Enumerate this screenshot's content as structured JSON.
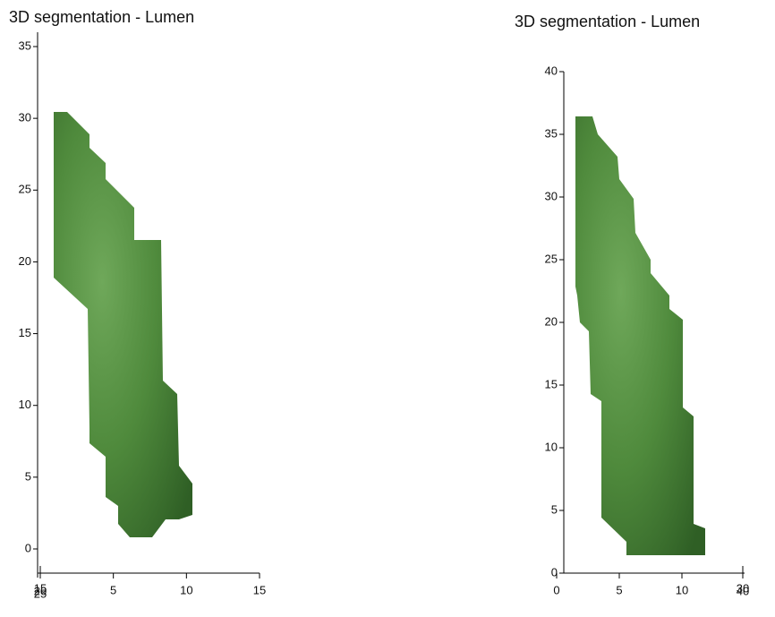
{
  "chart_data": [
    {
      "type": "surface3d",
      "title": "3D segmentation - Lumen",
      "ylim": [
        -2,
        36
      ],
      "yticks": [
        0,
        5,
        10,
        15,
        20,
        25,
        30,
        35
      ],
      "xlim": [
        0,
        15
      ],
      "xticks": [
        5,
        10,
        15
      ],
      "zticks": [
        15,
        20,
        25
      ],
      "color": "#4f8a3c"
    },
    {
      "type": "surface3d",
      "title": "3D segmentation - Lumen",
      "ylim": [
        0,
        40
      ],
      "yticks": [
        0,
        5,
        10,
        15,
        20,
        25,
        30,
        35,
        40
      ],
      "xlim": [
        0,
        15
      ],
      "xticks": [
        0,
        5,
        10
      ],
      "zticks": [
        30,
        40
      ],
      "color": "#4f8a3c"
    }
  ]
}
